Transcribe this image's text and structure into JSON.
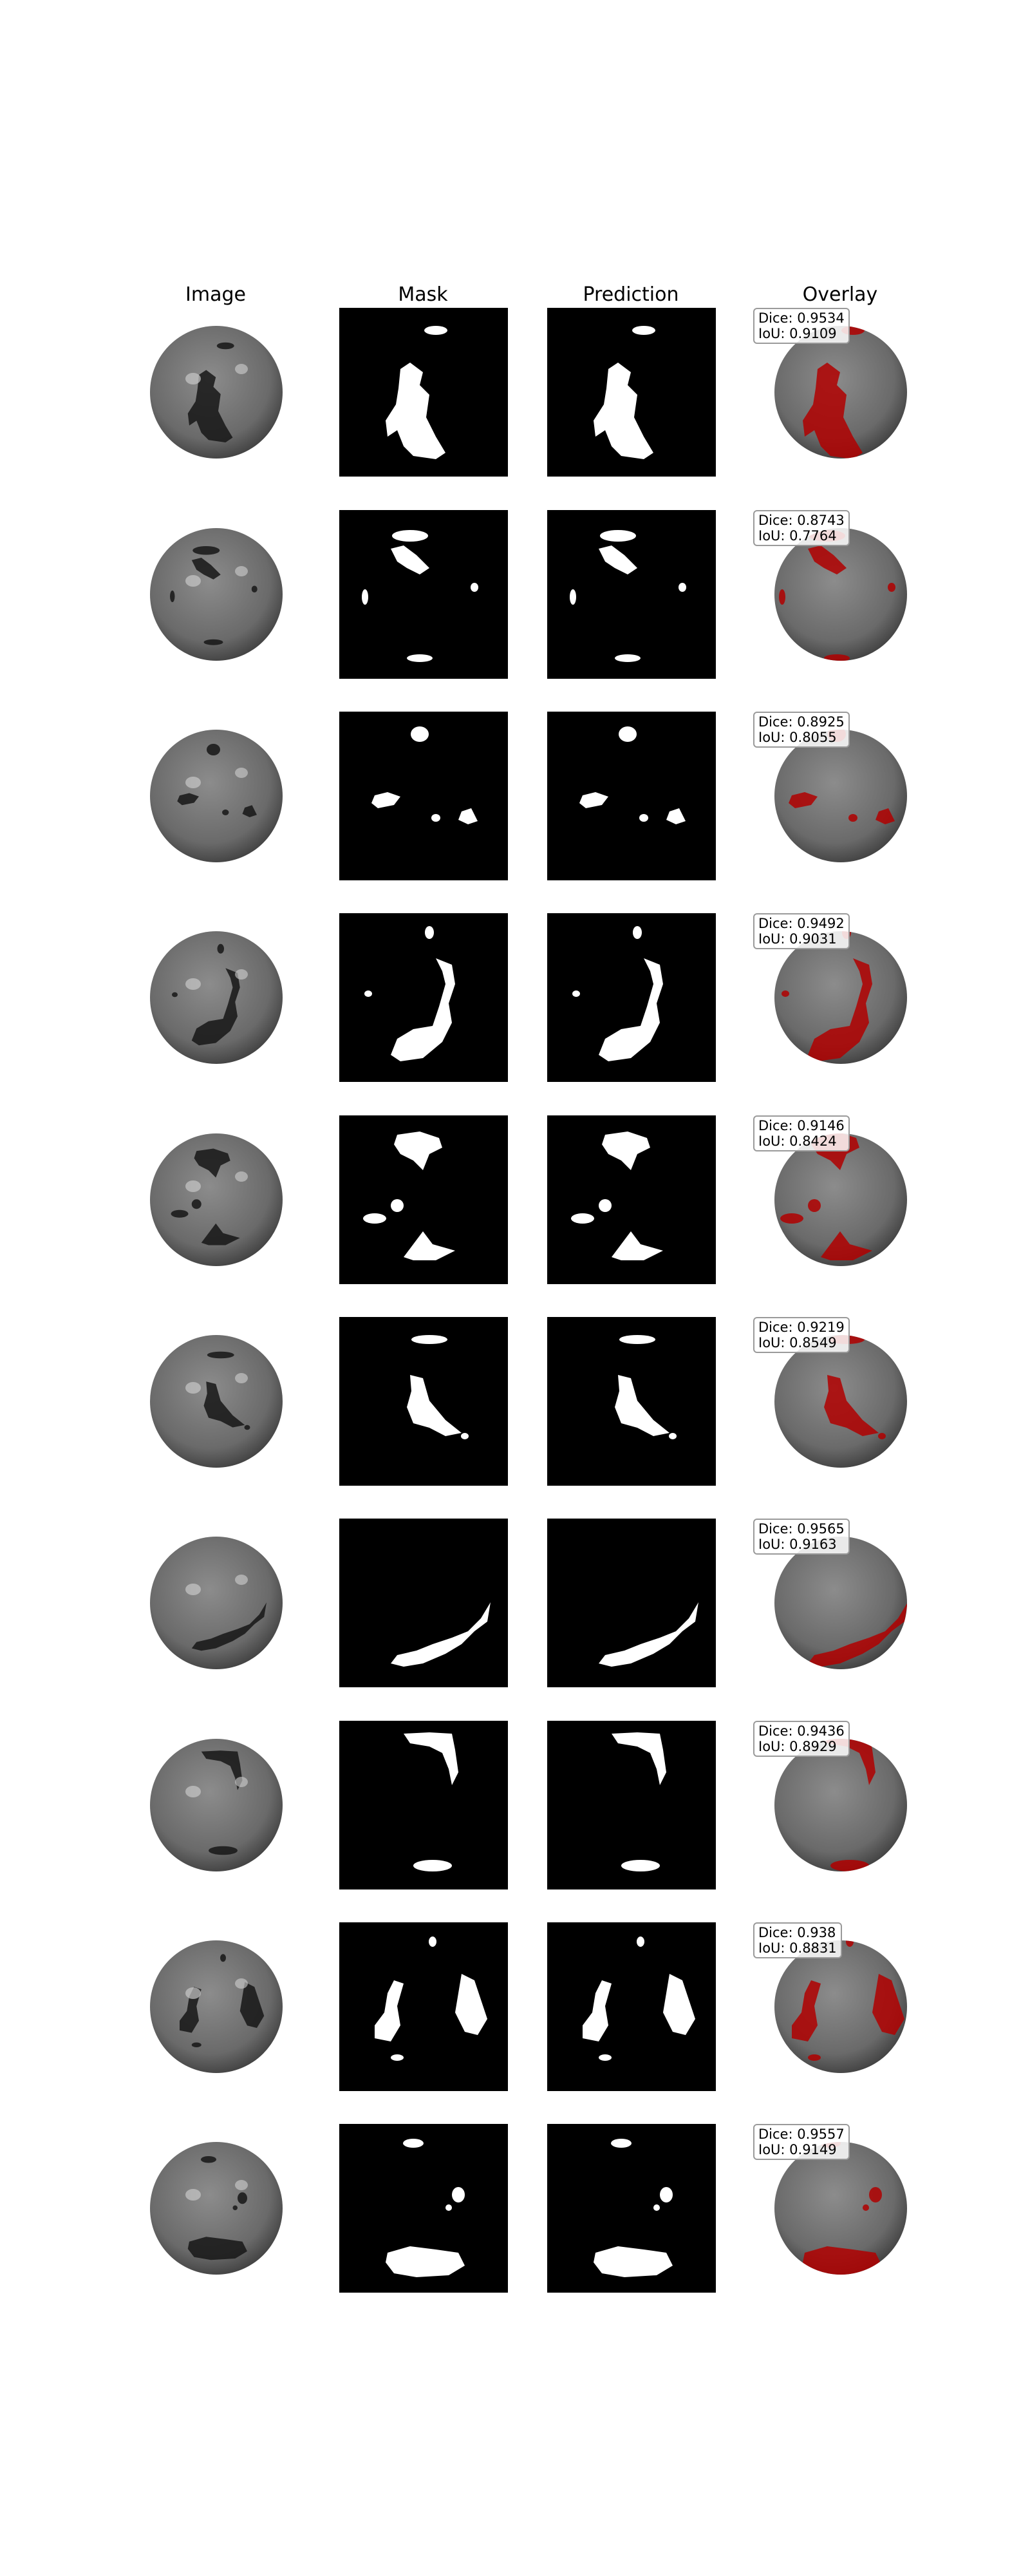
{
  "columns": [
    "Image",
    "Mask",
    "Prediction",
    "Overlay"
  ],
  "samples": [
    {
      "dice": "Dice: 0.9534",
      "iou": "IoU: 0.9109"
    },
    {
      "dice": "Dice: 0.8743",
      "iou": "IoU: 0.7764"
    },
    {
      "dice": "Dice: 0.8925",
      "iou": "IoU: 0.8055"
    },
    {
      "dice": "Dice: 0.9492",
      "iou": "IoU: 0.9031"
    },
    {
      "dice": "Dice: 0.9146",
      "iou": "IoU: 0.8424"
    },
    {
      "dice": "Dice: 0.9219",
      "iou": "IoU: 0.8549"
    },
    {
      "dice": "Dice: 0.9565",
      "iou": "IoU: 0.9163"
    },
    {
      "dice": "Dice: 0.9436",
      "iou": "IoU: 0.8929"
    },
    {
      "dice": "Dice: 0.938",
      "iou": "IoU: 0.8831"
    },
    {
      "dice": "Dice: 0.9557",
      "iou": "IoU: 0.9149"
    }
  ],
  "colors": {
    "mask_bg": "#000000",
    "mask_fg": "#ffffff",
    "overlay": "#b00000"
  }
}
